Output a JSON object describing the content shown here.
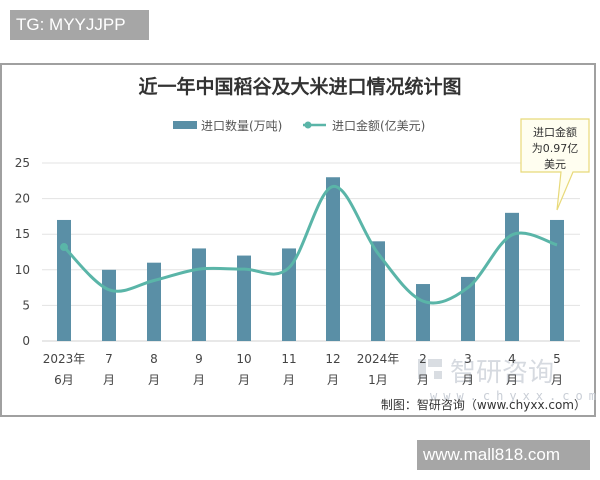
{
  "watermarks": {
    "top": "TG: MYYJJPP",
    "bottom": "www.mall818.com"
  },
  "logo": {
    "name": "智研咨询",
    "url": "www.chyxx.com"
  },
  "source": "制图：智研咨询（www.chyxx.com）",
  "callout": {
    "lines": [
      "进口金额",
      "为0.97亿",
      "美元"
    ]
  },
  "colors": {
    "bar": "#5a8fa6",
    "line": "#5ab5a8",
    "grid": "#e3e3e3",
    "callout_border": "#e8d97a",
    "callout_fill": "#fffef0"
  },
  "chart_data": {
    "type": "bar+line",
    "title": "近一年中国稻谷及大米进口情况统计图",
    "categories": [
      [
        "2023年",
        "6月"
      ],
      [
        "7",
        "月"
      ],
      [
        "8",
        "月"
      ],
      [
        "9",
        "月"
      ],
      [
        "10",
        "月"
      ],
      [
        "11",
        "月"
      ],
      [
        "12",
        "月"
      ],
      [
        "2024年",
        "1月"
      ],
      [
        "2",
        "月"
      ],
      [
        "3",
        "月"
      ],
      [
        "4",
        "月"
      ],
      [
        "5",
        "月"
      ]
    ],
    "series": [
      {
        "name": "进口数量(万吨)",
        "type": "bar",
        "values": [
          17,
          10,
          11,
          13,
          12,
          13,
          23,
          14,
          8,
          9,
          18,
          17
        ]
      },
      {
        "name": "进口金额(亿美元)",
        "type": "line",
        "smooth": true,
        "values": [
          13.2,
          7.2,
          8.5,
          10.1,
          10.1,
          10.3,
          21.7,
          12.3,
          5.6,
          7.5,
          14.9,
          13.5
        ]
      }
    ],
    "annotation": "进口金额为0.97亿美元",
    "yticks": [
      0,
      5,
      10,
      15,
      20,
      25
    ],
    "ylim": [
      0,
      25
    ],
    "xlabel": "",
    "ylabel": "",
    "grid": true,
    "legend_position": "top"
  }
}
